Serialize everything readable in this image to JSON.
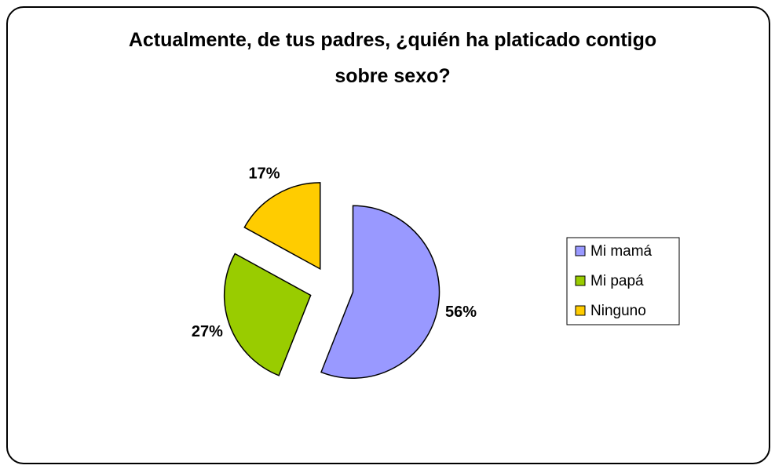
{
  "chart_data": {
    "type": "pie",
    "title": "Actualmente, de tus padres, ¿quién ha platicado contigo sobre sexo?",
    "categories": [
      "Mi mamá",
      "Mi papá",
      "Ninguno"
    ],
    "values": [
      56,
      27,
      17
    ],
    "value_labels": [
      "56%",
      "27%",
      "17%"
    ],
    "colors": [
      "#9999ff",
      "#99cc00",
      "#ffcc00"
    ],
    "exploded": true,
    "legend": "right"
  }
}
